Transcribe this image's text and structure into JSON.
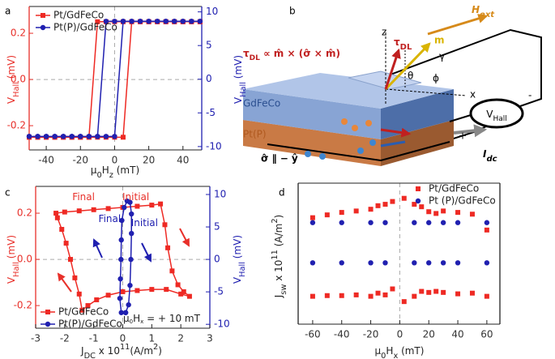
{
  "chart_data": [
    {
      "type": "line",
      "panel": "a",
      "xlabel": [
        "μ",
        "0",
        "H",
        "z",
        " (mT)"
      ],
      "ylabel": [
        "V",
        "Hall",
        " (mV)"
      ],
      "y2label": [
        "V",
        "Hall",
        " (mV)"
      ],
      "xlim": [
        -50,
        51
      ],
      "xticks": [
        -40,
        -20,
        0,
        20,
        40
      ],
      "ylim": [
        -0.305,
        0.316
      ],
      "yticks": [
        -0.2,
        {
          "value": 0,
          "label": "0.0"
        },
        0.2
      ],
      "y2lim": [
        -10.5,
        10.8
      ],
      "y2ticks": [
        -10,
        -5,
        0,
        5,
        10
      ],
      "ycolor": "#e8302a",
      "y2color": "#2020b0",
      "zero_lines": "xy",
      "legend": "upper left",
      "series": [
        {
          "name": "Pt/GdFeCo",
          "color": "#ee2a24",
          "marker": "square",
          "connected": true,
          "x": [
            -50,
            -45,
            -40,
            -35,
            -30,
            -25,
            -20,
            -15,
            -10,
            -5,
            0,
            5,
            10,
            15,
            20,
            25,
            30,
            35,
            40,
            45,
            50,
            50,
            45,
            40,
            35,
            30,
            25,
            20,
            15,
            10,
            5,
            0,
            -5,
            -10,
            -15,
            -20,
            -25,
            -30,
            -35,
            -40,
            -45,
            -50
          ],
          "values": [
            -0.25,
            -0.25,
            -0.25,
            -0.25,
            -0.25,
            -0.25,
            -0.25,
            -0.25,
            -0.25,
            -0.25,
            -0.25,
            -0.25,
            0.25,
            0.25,
            0.25,
            0.25,
            0.25,
            0.25,
            0.25,
            0.25,
            0.25,
            0.25,
            0.25,
            0.25,
            0.25,
            0.25,
            0.25,
            0.25,
            0.25,
            0.25,
            0.25,
            0.25,
            0.25,
            0.25,
            -0.25,
            -0.25,
            -0.25,
            -0.25,
            -0.25,
            -0.25,
            -0.25,
            -0.25
          ]
        },
        {
          "name": "Pt(P)/GdFeCo",
          "color": "#2020b0",
          "marker": "circle",
          "connected": true,
          "axis": "y2",
          "x": [
            -50,
            -45,
            -40,
            -35,
            -30,
            -25,
            -20,
            -15,
            -10,
            -5,
            0,
            5,
            10,
            15,
            20,
            25,
            30,
            35,
            40,
            45,
            50,
            50,
            45,
            40,
            35,
            30,
            25,
            20,
            15,
            10,
            5,
            0,
            -5,
            -10,
            -15,
            -20,
            -25,
            -30,
            -35,
            -40,
            -45,
            -50
          ],
          "values": [
            -8.5,
            -8.5,
            -8.5,
            -8.5,
            -8.5,
            -8.5,
            -8.5,
            -8.5,
            -8.5,
            -8.5,
            -8.5,
            8.6,
            8.6,
            8.6,
            8.6,
            8.6,
            8.6,
            8.6,
            8.6,
            8.6,
            8.6,
            8.6,
            8.6,
            8.6,
            8.6,
            8.6,
            8.6,
            8.6,
            8.6,
            8.6,
            8.6,
            8.6,
            8.6,
            -8.5,
            -8.5,
            -8.5,
            -8.5,
            -8.5,
            -8.5,
            -8.5,
            -8.5,
            -8.5
          ]
        }
      ]
    },
    {
      "type": "line",
      "panel": "c",
      "xlabel": [
        "J",
        "DC",
        " x 10",
        "11",
        "(A/m",
        "2",
        ")"
      ],
      "ylabel": [
        "V",
        "Hall",
        " (mV)"
      ],
      "y2label": [
        "V",
        "Hall",
        " (mV)"
      ],
      "xlim": [
        -3,
        3
      ],
      "xticks": [
        -3,
        -2,
        -1,
        0,
        1,
        2,
        3
      ],
      "ylim": [
        -0.298,
        0.316
      ],
      "yticks": [
        -0.2,
        {
          "value": 0,
          "label": "0.0"
        },
        0.2
      ],
      "y2lim": [
        -10.6,
        11.25
      ],
      "y2ticks": [
        -10,
        -5,
        0,
        5,
        10
      ],
      "ycolor": "#e8302a",
      "y2color": "#2020b0",
      "zero_lines": "xy",
      "legend": "lower left",
      "note": [
        "μ",
        "0",
        "H",
        "x",
        " = + 10 mT"
      ],
      "annotations": [
        {
          "text": "Final",
          "color": "#e8302a"
        },
        {
          "text": "Initial",
          "color": "#e8302a"
        },
        {
          "text": "Final",
          "color": "#2020b0"
        },
        {
          "text": "Initial",
          "color": "#2020b0"
        }
      ],
      "series": [
        {
          "name": "Pt/GdFeCo",
          "color": "#ee2a24",
          "marker": "square",
          "connected": true,
          "x": [
            -2.3,
            -2.0,
            -1.5,
            -1.0,
            -0.5,
            0,
            0.5,
            1.0,
            1.3,
            1.45,
            1.55,
            1.7,
            1.9,
            2.1,
            2.3,
            2.0,
            1.5,
            1.0,
            0.5,
            0,
            -0.5,
            -0.9,
            -1.2,
            -1.4,
            -1.5,
            -1.65,
            -1.8,
            -1.95,
            -2.1,
            -2.25
          ],
          "values": [
            0.2,
            0.205,
            0.21,
            0.215,
            0.22,
            0.225,
            0.23,
            0.235,
            0.24,
            0.15,
            0.05,
            -0.05,
            -0.11,
            -0.14,
            -0.16,
            -0.15,
            -0.13,
            -0.13,
            -0.135,
            -0.14,
            -0.155,
            -0.175,
            -0.2,
            -0.22,
            -0.15,
            -0.08,
            0,
            0.07,
            0.13,
            0.18
          ]
        },
        {
          "name": "Pt(P)/GdFeCo",
          "color": "#2020b0",
          "marker": "circle",
          "connected": true,
          "axis": "y2",
          "x": [
            0.1,
            -0.05,
            -0.1,
            -0.08,
            -0.06,
            -0.05,
            -0.03,
            0.05,
            0.15,
            0.25,
            0.3,
            0.3,
            0.28,
            0.25,
            0.2,
            0.1
          ],
          "values": [
            -8.2,
            -8.2,
            -6,
            -3,
            0,
            3,
            6,
            8,
            9,
            8.8,
            7,
            4,
            0,
            -4,
            -7,
            -8.2
          ]
        }
      ]
    },
    {
      "type": "scatter",
      "panel": "d",
      "xlabel": [
        "μ",
        "0",
        "H",
        "x",
        " (mT)"
      ],
      "ylabel": [
        "J",
        "sw",
        " x 10",
        "11",
        " (A/m",
        "2",
        ")"
      ],
      "xlim": [
        -70,
        69
      ],
      "xticks": [
        -60,
        -40,
        -20,
        0,
        20,
        40,
        60
      ],
      "ylim": [
        -2,
        2
      ],
      "zero_lines": "x",
      "legend": "upper right",
      "series": [
        {
          "name": "Pt/GdFeCo",
          "color": "#ee2a24",
          "marker": "square",
          "connected": false,
          "x": [
            -60,
            -50,
            -40,
            -30,
            -20,
            -15,
            -10,
            -5,
            3,
            10,
            15,
            20,
            25,
            30,
            40,
            50,
            60,
            -60,
            -50,
            -40,
            -30,
            -20,
            -15,
            -10,
            -5,
            3,
            10,
            15,
            20,
            25,
            30,
            40,
            50,
            60
          ],
          "values": [
            1.02,
            1.1,
            1.17,
            1.21,
            1.26,
            1.36,
            1.4,
            1.48,
            1.57,
            1.4,
            1.33,
            1.19,
            1.14,
            1.21,
            1.17,
            1.12,
            0.67,
            -1.21,
            -1.19,
            -1.19,
            -1.17,
            -1.21,
            -1.12,
            -1.17,
            -1.0,
            -1.36,
            -1.21,
            -1.07,
            -1.1,
            -1.07,
            -1.1,
            -1.14,
            -1.12,
            -1.21
          ]
        },
        {
          "name": "Pt (P)/GdFeCo",
          "color": "#2020b0",
          "marker": "circle",
          "connected": false,
          "x": [
            -60,
            -40,
            -20,
            -10,
            10,
            20,
            30,
            40,
            60,
            -60,
            -40,
            -20,
            -10,
            10,
            20,
            30,
            40,
            60
          ],
          "values": [
            0.88,
            0.88,
            0.88,
            0.88,
            0.88,
            0.88,
            0.88,
            0.88,
            0.88,
            -0.26,
            -0.26,
            -0.26,
            -0.26,
            -0.26,
            -0.26,
            -0.26,
            -0.26,
            -0.26
          ]
        }
      ]
    }
  ],
  "diagram": {
    "panel": "b",
    "z": "z",
    "tau": [
      "τ",
      "DL"
    ],
    "m": "m",
    "hext": [
      "H",
      "ext"
    ],
    "equation": [
      "τ",
      "DL",
      " ∝ m̂ × (σ̂ × m̂)"
    ],
    "gamma": "γ",
    "theta": "θ",
    "phi": "ϕ",
    "gdfeco": "GdFeCo",
    "pt": "Pt(P)",
    "x": "x",
    "vhall": [
      "V",
      "Hall"
    ],
    "minus": "-",
    "plus": "+",
    "sigma": "σ̂ ∥ − ŷ",
    "idc": [
      "I",
      "dc"
    ]
  }
}
